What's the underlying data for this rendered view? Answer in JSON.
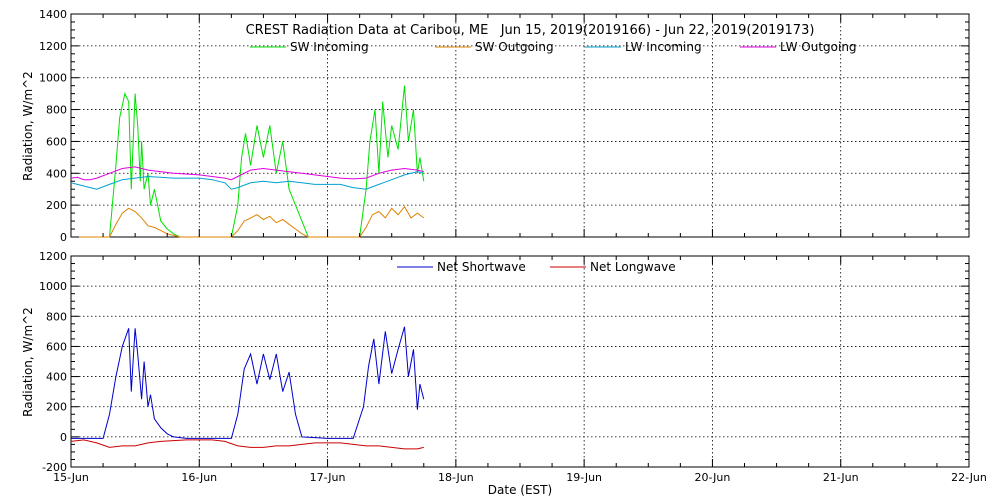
{
  "chart_data": [
    {
      "type": "line",
      "title": "CREST Radiation Data at Caribou, ME   Jun 15, 2019(2019166) - Jun 22, 2019(2019173)",
      "ylabel": "Radiation, W/m^2",
      "xlabel": "",
      "xlim": [
        0,
        7
      ],
      "ylim": [
        0,
        1400
      ],
      "yticks": [
        0,
        200,
        400,
        600,
        800,
        1000,
        1200,
        1400
      ],
      "xticks": [
        0,
        1,
        2,
        3,
        4,
        5,
        6,
        7
      ],
      "grid": true,
      "legend": "top",
      "series": [
        {
          "name": "SW Incoming",
          "color": "#00e000",
          "x": [
            0.0,
            0.3,
            0.35,
            0.38,
            0.42,
            0.45,
            0.47,
            0.5,
            0.52,
            0.54,
            0.55,
            0.57,
            0.6,
            0.62,
            0.65,
            0.7,
            0.75,
            0.8,
            0.85,
            1.0,
            1.25,
            1.3,
            1.33,
            1.36,
            1.4,
            1.45,
            1.5,
            1.55,
            1.6,
            1.65,
            1.7,
            1.75,
            1.8,
            1.85,
            2.0,
            2.25,
            2.3,
            2.33,
            2.37,
            2.4,
            2.43,
            2.47,
            2.5,
            2.55,
            2.6,
            2.63,
            2.67,
            2.7,
            2.72,
            2.75
          ],
          "y": [
            0,
            0,
            450,
            750,
            900,
            850,
            300,
            900,
            700,
            350,
            600,
            300,
            400,
            200,
            300,
            100,
            50,
            20,
            0,
            0,
            0,
            200,
            500,
            650,
            450,
            700,
            500,
            700,
            400,
            600,
            300,
            200,
            100,
            0,
            0,
            0,
            300,
            600,
            800,
            400,
            850,
            500,
            700,
            550,
            950,
            600,
            800,
            400,
            500,
            350
          ]
        },
        {
          "name": "SW Outgoing",
          "color": "#e08000",
          "x": [
            0.0,
            0.3,
            0.35,
            0.4,
            0.45,
            0.5,
            0.55,
            0.6,
            0.65,
            0.7,
            0.75,
            0.8,
            0.85,
            1.0,
            1.25,
            1.3,
            1.35,
            1.4,
            1.45,
            1.5,
            1.55,
            1.6,
            1.65,
            1.7,
            1.75,
            1.8,
            1.85,
            2.0,
            2.25,
            2.3,
            2.35,
            2.4,
            2.45,
            2.5,
            2.55,
            2.6,
            2.65,
            2.7,
            2.75
          ],
          "y": [
            0,
            0,
            80,
            150,
            180,
            160,
            120,
            70,
            60,
            40,
            20,
            10,
            0,
            0,
            0,
            40,
            100,
            120,
            140,
            110,
            130,
            90,
            110,
            80,
            50,
            20,
            0,
            0,
            0,
            60,
            140,
            160,
            120,
            180,
            140,
            190,
            120,
            150,
            120
          ]
        },
        {
          "name": "LW Incoming",
          "color": "#00a0d0",
          "x": [
            0.0,
            0.05,
            0.1,
            0.15,
            0.2,
            0.3,
            0.4,
            0.5,
            0.6,
            0.8,
            1.0,
            1.1,
            1.2,
            1.25,
            1.3,
            1.4,
            1.5,
            1.6,
            1.7,
            1.8,
            1.9,
            2.0,
            2.1,
            2.2,
            2.3,
            2.4,
            2.5,
            2.6,
            2.7,
            2.75
          ],
          "y": [
            340,
            330,
            320,
            310,
            300,
            330,
            360,
            370,
            380,
            370,
            370,
            360,
            340,
            300,
            310,
            340,
            350,
            340,
            350,
            340,
            330,
            330,
            330,
            310,
            300,
            330,
            360,
            390,
            410,
            400
          ]
        },
        {
          "name": "LW Outgoing",
          "color": "#e000e0",
          "x": [
            0.0,
            0.05,
            0.1,
            0.15,
            0.2,
            0.3,
            0.4,
            0.5,
            0.6,
            0.8,
            1.0,
            1.1,
            1.2,
            1.25,
            1.3,
            1.4,
            1.5,
            1.6,
            1.7,
            1.8,
            1.9,
            2.0,
            2.1,
            2.2,
            2.3,
            2.4,
            2.5,
            2.6,
            2.7,
            2.75
          ],
          "y": [
            370,
            375,
            360,
            360,
            370,
            400,
            430,
            440,
            420,
            400,
            390,
            380,
            370,
            360,
            380,
            420,
            430,
            420,
            410,
            400,
            390,
            380,
            370,
            365,
            370,
            400,
            420,
            430,
            420,
            410
          ]
        }
      ]
    },
    {
      "type": "line",
      "title": "",
      "ylabel": "Radiation, W/m^2",
      "xlabel": "Date (EST)",
      "xlim": [
        0,
        7
      ],
      "ylim": [
        -200,
        1200
      ],
      "yticks": [
        -200,
        0,
        200,
        400,
        600,
        800,
        1000,
        1200
      ],
      "xticks": [
        0,
        1,
        2,
        3,
        4,
        5,
        6,
        7
      ],
      "xticklabels": [
        "15-Jun",
        "16-Jun",
        "17-Jun",
        "18-Jun",
        "19-Jun",
        "20-Jun",
        "21-Jun",
        "22-Jun"
      ],
      "grid": true,
      "legend": "top",
      "series": [
        {
          "name": "Net Shortwave",
          "color": "#0000cc",
          "x": [
            0.0,
            0.25,
            0.3,
            0.35,
            0.4,
            0.45,
            0.47,
            0.5,
            0.52,
            0.55,
            0.57,
            0.6,
            0.62,
            0.65,
            0.7,
            0.75,
            0.8,
            0.9,
            1.0,
            1.25,
            1.3,
            1.35,
            1.4,
            1.45,
            1.5,
            1.55,
            1.6,
            1.65,
            1.7,
            1.75,
            1.8,
            2.0,
            2.2,
            2.28,
            2.32,
            2.36,
            2.4,
            2.45,
            2.5,
            2.55,
            2.6,
            2.63,
            2.67,
            2.7,
            2.72,
            2.75
          ],
          "y": [
            -10,
            -10,
            150,
            400,
            600,
            720,
            300,
            720,
            550,
            250,
            500,
            200,
            280,
            120,
            60,
            20,
            0,
            -10,
            -10,
            -10,
            150,
            450,
            550,
            350,
            550,
            380,
            550,
            300,
            430,
            150,
            0,
            -10,
            -10,
            200,
            470,
            650,
            350,
            700,
            420,
            580,
            730,
            400,
            580,
            180,
            350,
            250
          ]
        },
        {
          "name": "Net Longwave",
          "color": "#cc0000",
          "x": [
            0.0,
            0.1,
            0.2,
            0.3,
            0.4,
            0.5,
            0.6,
            0.7,
            0.8,
            0.9,
            1.0,
            1.1,
            1.2,
            1.3,
            1.4,
            1.5,
            1.6,
            1.7,
            1.8,
            1.9,
            2.0,
            2.1,
            2.2,
            2.3,
            2.4,
            2.5,
            2.6,
            2.7,
            2.75
          ],
          "y": [
            -30,
            -20,
            -40,
            -70,
            -60,
            -60,
            -40,
            -30,
            -25,
            -20,
            -20,
            -20,
            -30,
            -60,
            -70,
            -70,
            -60,
            -60,
            -50,
            -40,
            -40,
            -40,
            -50,
            -60,
            -60,
            -70,
            -80,
            -80,
            -70
          ]
        }
      ]
    }
  ]
}
